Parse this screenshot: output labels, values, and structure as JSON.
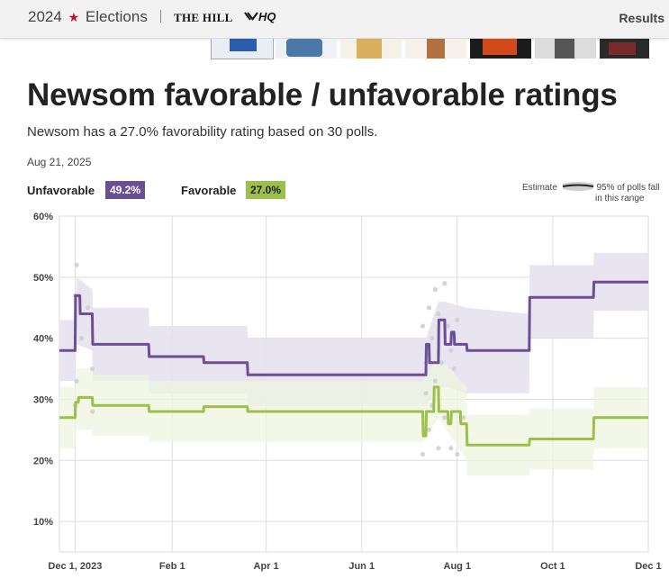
{
  "header": {
    "year": "2024",
    "elections_label": "Elections",
    "partner_1": "THE HILL",
    "partner_2": "HQ",
    "results_link": "Results"
  },
  "page": {
    "title": "Newsom favorable / unfavorable ratings",
    "subtitle": "Newsom has a 27.0% favorability rating based on 30 polls.",
    "date": "Aug 21, 2025"
  },
  "legend": {
    "unfavorable_label": "Unfavorable",
    "unfavorable_value": "49.2%",
    "favorable_label": "Favorable",
    "favorable_value": "27.0%",
    "estimate_label": "Estimate",
    "band_label_line1": "95% of polls fall",
    "band_label_line2": "in this range"
  },
  "colors": {
    "unfavorable": "#6b4f94",
    "favorable": "#9bc14a",
    "unfavorable_band": "#e6e2ee",
    "favorable_band": "#eef4df",
    "overlap_band": "#e0e0e0",
    "poll_dot": "#cfcfcf",
    "grid": "#dddddd"
  },
  "chart_data": {
    "type": "line",
    "x_axis": {
      "tick_labels": [
        "Dec 1, 2023",
        "Feb 1",
        "Apr 1",
        "Jun 1",
        "Aug 1",
        "Oct 1",
        "Dec 1"
      ],
      "tick_days": [
        0,
        62,
        122,
        183,
        244,
        305,
        366
      ],
      "range_days": [
        -10,
        366
      ]
    },
    "y_axis": {
      "tick_labels": [
        "10%",
        "20%",
        "30%",
        "40%",
        "50%",
        "60%"
      ],
      "tick_values": [
        10,
        20,
        30,
        40,
        50,
        60
      ],
      "ylim": [
        5,
        60
      ]
    },
    "series": [
      {
        "name": "Unfavorable",
        "color": "#6b4f94",
        "points": [
          [
            -10,
            38
          ],
          [
            0,
            38
          ],
          [
            0.3,
            47
          ],
          [
            3,
            47
          ],
          [
            3.3,
            44
          ],
          [
            11,
            44
          ],
          [
            11.3,
            39
          ],
          [
            47,
            39
          ],
          [
            47.3,
            37
          ],
          [
            82,
            37
          ],
          [
            82.3,
            36
          ],
          [
            110,
            36
          ],
          [
            110.3,
            34
          ],
          [
            224,
            34
          ],
          [
            224.3,
            39
          ],
          [
            226,
            39
          ],
          [
            226.3,
            36
          ],
          [
            232,
            36
          ],
          [
            232.3,
            43
          ],
          [
            236,
            43
          ],
          [
            236.3,
            39
          ],
          [
            240,
            39
          ],
          [
            240.3,
            41
          ],
          [
            242,
            41
          ],
          [
            242.3,
            39
          ],
          [
            250,
            39
          ],
          [
            250.3,
            38
          ],
          [
            290,
            38
          ],
          [
            290.3,
            46.7
          ],
          [
            331,
            46.7
          ],
          [
            331.3,
            49.2
          ],
          [
            366,
            49.2
          ]
        ],
        "band_upper": [
          [
            -10,
            43
          ],
          [
            0,
            43
          ],
          [
            1,
            50
          ],
          [
            11,
            48
          ],
          [
            11.3,
            45
          ],
          [
            47,
            45
          ],
          [
            47.3,
            42
          ],
          [
            110,
            42
          ],
          [
            110.3,
            40
          ],
          [
            224,
            40
          ],
          [
            232,
            46
          ],
          [
            236,
            46
          ],
          [
            250,
            45
          ],
          [
            290,
            44
          ],
          [
            290.3,
            52
          ],
          [
            331,
            52
          ],
          [
            331.3,
            54
          ],
          [
            366,
            54
          ]
        ],
        "band_lower": [
          [
            -10,
            33
          ],
          [
            0,
            33
          ],
          [
            1,
            39
          ],
          [
            11,
            38
          ],
          [
            11.3,
            33
          ],
          [
            47,
            33
          ],
          [
            47.3,
            31
          ],
          [
            110,
            31
          ],
          [
            110.3,
            29
          ],
          [
            224,
            29
          ],
          [
            232,
            32
          ],
          [
            236,
            32
          ],
          [
            250,
            31
          ],
          [
            290,
            31
          ],
          [
            290.3,
            40
          ],
          [
            331,
            40
          ],
          [
            331.3,
            44.5
          ],
          [
            366,
            44.5
          ]
        ]
      },
      {
        "name": "Favorable",
        "color": "#9bc14a",
        "points": [
          [
            -10,
            27
          ],
          [
            0,
            27
          ],
          [
            0.3,
            29.5
          ],
          [
            2,
            29.5
          ],
          [
            2.3,
            30.3
          ],
          [
            11,
            30.3
          ],
          [
            11.3,
            29
          ],
          [
            47,
            29
          ],
          [
            47.3,
            28
          ],
          [
            82,
            28
          ],
          [
            82.3,
            28.8
          ],
          [
            110,
            28.8
          ],
          [
            110.3,
            28
          ],
          [
            222,
            28
          ],
          [
            222.3,
            24
          ],
          [
            224,
            24
          ],
          [
            224.3,
            28
          ],
          [
            229,
            28
          ],
          [
            229.3,
            32
          ],
          [
            232,
            32
          ],
          [
            232.3,
            28
          ],
          [
            238,
            28
          ],
          [
            238.3,
            26
          ],
          [
            240,
            26
          ],
          [
            240.3,
            28
          ],
          [
            246,
            28
          ],
          [
            246.3,
            26
          ],
          [
            250,
            26
          ],
          [
            250.3,
            22.5
          ],
          [
            290,
            22.5
          ],
          [
            290.3,
            23.5
          ],
          [
            331,
            23.5
          ],
          [
            331.3,
            27
          ],
          [
            366,
            27
          ]
        ],
        "band_upper": [
          [
            -10,
            32
          ],
          [
            0,
            32
          ],
          [
            1,
            35
          ],
          [
            11,
            35
          ],
          [
            11.3,
            34
          ],
          [
            47,
            34
          ],
          [
            47.3,
            33
          ],
          [
            110,
            33
          ],
          [
            110.3,
            33
          ],
          [
            222,
            33
          ],
          [
            232,
            37
          ],
          [
            250,
            32
          ],
          [
            250.3,
            27.5
          ],
          [
            290,
            27.5
          ],
          [
            290.3,
            28.5
          ],
          [
            331,
            28.5
          ],
          [
            331.3,
            32
          ],
          [
            366,
            32
          ]
        ],
        "band_lower": [
          [
            -10,
            22
          ],
          [
            0,
            22
          ],
          [
            1,
            25
          ],
          [
            11,
            25
          ],
          [
            11.3,
            24
          ],
          [
            47,
            24
          ],
          [
            47.3,
            23
          ],
          [
            110,
            23
          ],
          [
            110.3,
            23
          ],
          [
            222,
            23
          ],
          [
            232,
            27
          ],
          [
            250,
            20
          ],
          [
            250.3,
            17.5
          ],
          [
            290,
            17.5
          ],
          [
            290.3,
            18.5
          ],
          [
            331,
            18.5
          ],
          [
            331.3,
            22
          ],
          [
            366,
            22
          ]
        ]
      }
    ],
    "polls": [
      [
        0,
        47
      ],
      [
        1,
        52
      ],
      [
        0,
        29
      ],
      [
        1,
        33
      ],
      [
        4,
        40
      ],
      [
        8,
        45
      ],
      [
        11,
        35
      ],
      [
        11,
        28
      ],
      [
        222,
        42
      ],
      [
        224,
        36
      ],
      [
        226,
        45
      ],
      [
        228,
        40
      ],
      [
        230,
        48
      ],
      [
        232,
        44
      ],
      [
        234,
        36
      ],
      [
        236,
        49
      ],
      [
        238,
        42
      ],
      [
        240,
        38
      ],
      [
        242,
        35
      ],
      [
        244,
        43
      ],
      [
        222,
        21
      ],
      [
        224,
        31
      ],
      [
        226,
        25
      ],
      [
        228,
        29
      ],
      [
        230,
        33
      ],
      [
        232,
        22
      ],
      [
        236,
        27
      ],
      [
        240,
        22
      ],
      [
        244,
        21
      ],
      [
        248,
        27
      ]
    ],
    "title": "Newsom favorable / unfavorable ratings",
    "xlabel": "",
    "ylabel": ""
  }
}
